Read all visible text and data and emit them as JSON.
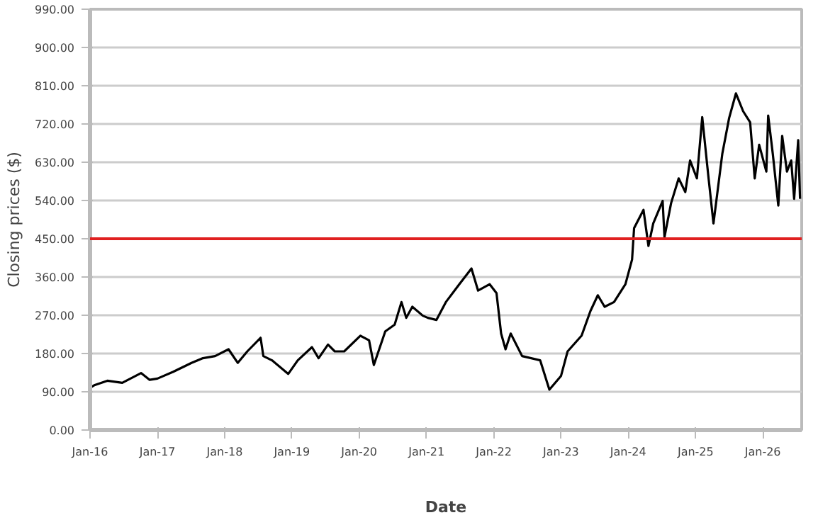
{
  "chart_data": {
    "type": "line",
    "xlabel": "Date",
    "ylabel": "Closing prices ($)",
    "x": [
      "2016-01-04",
      "2016-01-27",
      "2016-04-04",
      "2016-06-24",
      "2016-10-04",
      "2016-11-20",
      "2017-01-01",
      "2017-03-28",
      "2017-07-05",
      "2017-09-05",
      "2017-11-10",
      "2018-01-22",
      "2018-03-13",
      "2018-05-04",
      "2018-07-15",
      "2018-07-30",
      "2018-09-15",
      "2018-12-12",
      "2019-02-02",
      "2019-04-20",
      "2019-05-26",
      "2019-07-16",
      "2019-08-22",
      "2019-10-12",
      "2020-01-08",
      "2020-02-24",
      "2020-03-21",
      "2020-05-22",
      "2020-07-12",
      "2020-08-18",
      "2020-09-13",
      "2020-10-16",
      "2020-12-12",
      "2021-01-08",
      "2021-02-24",
      "2021-04-16",
      "2021-06-28",
      "2021-09-02",
      "2021-10-08",
      "2021-12-10",
      "2022-01-16",
      "2022-02-10",
      "2022-03-06",
      "2022-04-03",
      "2022-06-04",
      "2022-09-10",
      "2022-10-30",
      "2023-01-01",
      "2023-02-06",
      "2023-04-23",
      "2023-06-10",
      "2023-07-20",
      "2023-08-26",
      "2023-10-16",
      "2023-12-17",
      "2024-01-22",
      "2024-02-02",
      "2024-03-24",
      "2024-04-20",
      "2024-05-16",
      "2024-07-06",
      "2024-07-16",
      "2024-08-21",
      "2024-10-01",
      "2024-11-06",
      "2024-12-02",
      "2025-01-08",
      "2025-02-06",
      "2025-03-10",
      "2025-04-08",
      "2025-05-26",
      "2025-07-02",
      "2025-08-08",
      "2025-09-16",
      "2025-10-24",
      "2025-11-18",
      "2025-12-12",
      "2026-01-20",
      "2026-01-30",
      "2026-02-24",
      "2026-03-26",
      "2026-04-16",
      "2026-05-12",
      "2026-06-04",
      "2026-06-20",
      "2026-07-12",
      "2026-07-22"
    ],
    "series": [
      {
        "color": "#000000",
        "values": [
          100,
          106,
          116,
          111,
          134,
          118,
          121,
          137,
          158,
          169,
          174,
          190,
          158,
          185,
          217,
          174,
          164,
          132,
          164,
          195,
          169,
          201,
          185,
          185,
          222,
          211,
          153,
          232,
          248,
          301,
          264,
          290,
          269,
          264,
          259,
          301,
          343,
          380,
          328,
          343,
          322,
          227,
          190,
          227,
          174,
          164,
          95,
          127,
          185,
          222,
          280,
          317,
          290,
          301,
          343,
          401,
          475,
          518,
          433,
          486,
          539,
          454,
          534,
          592,
          560,
          634,
          592,
          736,
          602,
          486,
          650,
          734,
          792,
          750,
          724,
          592,
          671,
          608,
          740,
          650,
          528,
          692,
          608,
          634,
          544,
          682,
          544
        ]
      }
    ],
    "xlim": [
      "2016-01-01",
      "2026-07-31"
    ],
    "xticks": [
      {
        "value": "2016-01-01",
        "label": "Jan-16"
      },
      {
        "value": "2017-01-01",
        "label": "Jan-17"
      },
      {
        "value": "2018-01-01",
        "label": "Jan-18"
      },
      {
        "value": "2019-01-01",
        "label": "Jan-19"
      },
      {
        "value": "2020-01-01",
        "label": "Jan-20"
      },
      {
        "value": "2021-01-01",
        "label": "Jan-21"
      },
      {
        "value": "2022-01-01",
        "label": "Jan-22"
      },
      {
        "value": "2023-01-01",
        "label": "Jan-23"
      },
      {
        "value": "2024-01-01",
        "label": "Jan-24"
      },
      {
        "value": "2025-01-01",
        "label": "Jan-25"
      },
      {
        "value": "2026-01-01",
        "label": "Jan-26"
      }
    ],
    "ylim": [
      0,
      990
    ],
    "yticks": [
      {
        "value": 0,
        "label": "0.00"
      },
      {
        "value": 90,
        "label": "90.00"
      },
      {
        "value": 180,
        "label": "180.00"
      },
      {
        "value": 270,
        "label": "270.00"
      },
      {
        "value": 360,
        "label": "360.00"
      },
      {
        "value": 450,
        "label": "450.00"
      },
      {
        "value": 540,
        "label": "540.00"
      },
      {
        "value": 630,
        "label": "630.00"
      },
      {
        "value": 720,
        "label": "720.00"
      },
      {
        "value": 810,
        "label": "810.00"
      },
      {
        "value": 900,
        "label": "900.00"
      },
      {
        "value": 990,
        "label": "990.00"
      }
    ],
    "grid": "y",
    "line_style": "solid",
    "ref_lines": [
      {
        "axis": "y",
        "value": 450,
        "color": "#e02020"
      }
    ]
  }
}
